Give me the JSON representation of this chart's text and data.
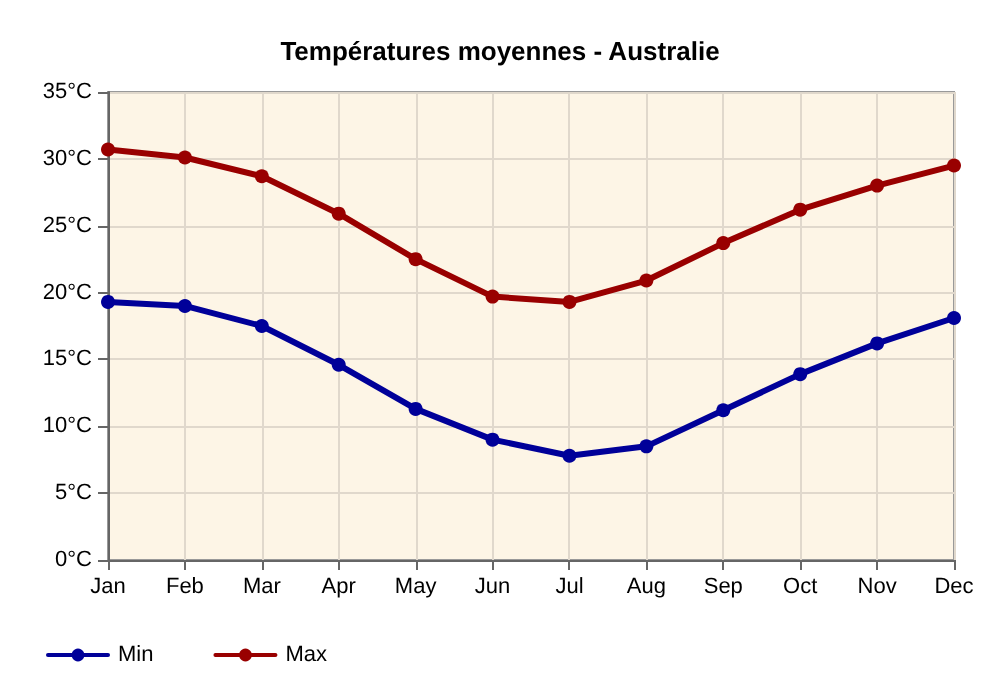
{
  "chart_data": {
    "type": "line",
    "title": "Températures moyennes - Australie",
    "categories": [
      "Jan",
      "Feb",
      "Mar",
      "Apr",
      "May",
      "Jun",
      "Jul",
      "Aug",
      "Sep",
      "Oct",
      "Nov",
      "Dec"
    ],
    "series": [
      {
        "name": "Min",
        "color": "#000099",
        "values": [
          19.3,
          19.0,
          17.5,
          14.6,
          11.3,
          9.0,
          7.8,
          8.5,
          11.2,
          13.9,
          16.2,
          18.1
        ]
      },
      {
        "name": "Max",
        "color": "#990000",
        "values": [
          30.7,
          30.1,
          28.7,
          25.9,
          22.5,
          19.7,
          19.3,
          20.9,
          23.7,
          26.2,
          28.0,
          29.5
        ]
      }
    ],
    "ylim": [
      0,
      35
    ],
    "yticks": [
      {
        "value": 0,
        "label": "0°C"
      },
      {
        "value": 5,
        "label": "5°C"
      },
      {
        "value": 10,
        "label": "10°C"
      },
      {
        "value": 15,
        "label": "15°C"
      },
      {
        "value": 20,
        "label": "20°C"
      },
      {
        "value": 25,
        "label": "25°C"
      },
      {
        "value": 30,
        "label": "30°C"
      },
      {
        "value": 35,
        "label": "35°C"
      }
    ],
    "grid": true,
    "legend": "bottom left",
    "marker": "circle",
    "line_style": "solid"
  }
}
